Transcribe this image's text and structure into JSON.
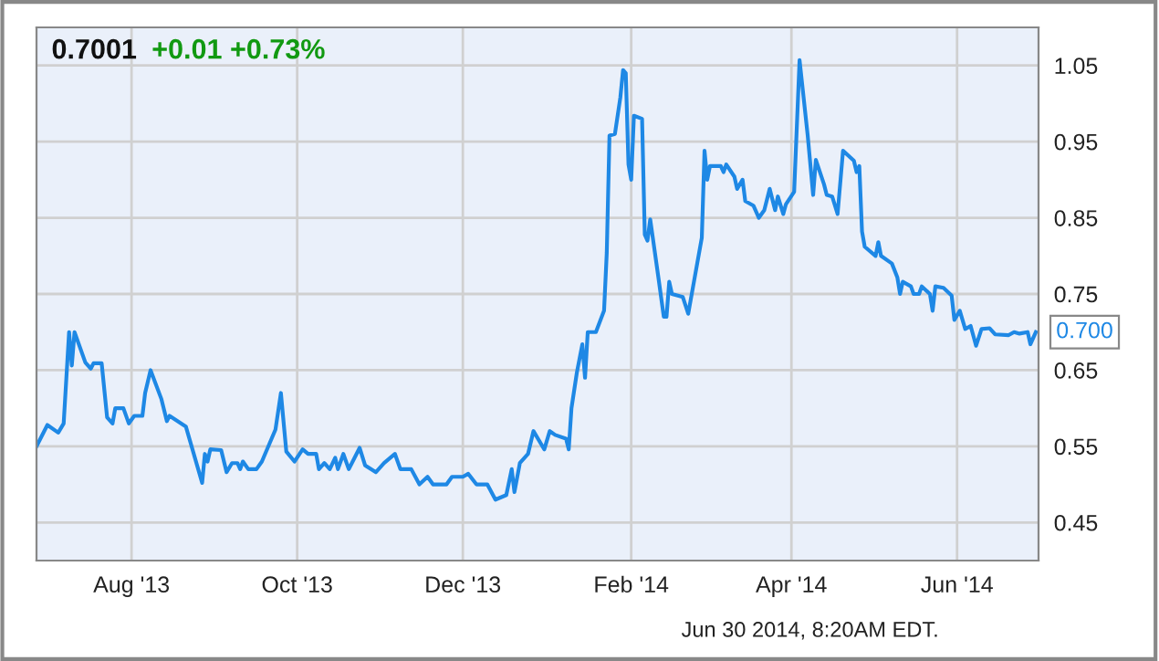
{
  "chart_data": {
    "type": "line",
    "title": "0.7001",
    "subtitle": "+0.01 +0.73%",
    "x": [
      "2013-06-27",
      "2013-07-01",
      "2013-07-05",
      "2013-07-07",
      "2013-07-09",
      "2013-07-10",
      "2013-07-11",
      "2013-07-15",
      "2013-07-17",
      "2013-07-18",
      "2013-07-21",
      "2013-07-23",
      "2013-07-25",
      "2013-07-26",
      "2013-07-29",
      "2013-07-31",
      "2013-08-02",
      "2013-08-05",
      "2013-08-06",
      "2013-08-08",
      "2013-08-12",
      "2013-08-14",
      "2013-08-15",
      "2013-08-21",
      "2013-08-27",
      "2013-08-28",
      "2013-08-29",
      "2013-08-30",
      "2013-09-03",
      "2013-09-05",
      "2013-09-07",
      "2013-09-09",
      "2013-09-10",
      "2013-09-11",
      "2013-09-13",
      "2013-09-16",
      "2013-09-18",
      "2013-09-23",
      "2013-09-25",
      "2013-09-27",
      "2013-09-30",
      "2013-10-03",
      "2013-10-05",
      "2013-10-08",
      "2013-10-09",
      "2013-10-11",
      "2013-10-13",
      "2013-10-15",
      "2013-10-16",
      "2013-10-18",
      "2013-10-20",
      "2013-10-24",
      "2013-10-26",
      "2013-10-30",
      "2013-11-02",
      "2013-11-06",
      "2013-11-08",
      "2013-11-12",
      "2013-11-15",
      "2013-11-18",
      "2013-11-20",
      "2013-11-25",
      "2013-11-27",
      "2013-12-01",
      "2013-12-03",
      "2013-12-06",
      "2013-12-10",
      "2013-12-13",
      "2013-12-17",
      "2013-12-19",
      "2013-12-20",
      "2013-12-22",
      "2013-12-25",
      "2013-12-27",
      "2013-12-31",
      "2014-01-02",
      "2014-01-04",
      "2014-01-08",
      "2014-01-09",
      "2014-01-10",
      "2014-01-12",
      "2014-01-14",
      "2014-01-15",
      "2014-01-16",
      "2014-01-19",
      "2014-01-22",
      "2014-01-23",
      "2014-01-24",
      "2014-01-26",
      "2014-01-28",
      "2014-01-29",
      "2014-01-30",
      "2014-01-31",
      "2014-02-01",
      "2014-02-02",
      "2014-02-05",
      "2014-02-06",
      "2014-02-07",
      "2014-02-08",
      "2014-02-11",
      "2014-02-13",
      "2014-02-14",
      "2014-02-15",
      "2014-02-16",
      "2014-02-20",
      "2014-02-22",
      "2014-02-25",
      "2014-02-27",
      "2014-02-28",
      "2014-03-01",
      "2014-03-02",
      "2014-03-06",
      "2014-03-07",
      "2014-03-08",
      "2014-03-11",
      "2014-03-12",
      "2014-03-14",
      "2014-03-15",
      "2014-03-18",
      "2014-03-20",
      "2014-03-22",
      "2014-03-24",
      "2014-03-26",
      "2014-03-27",
      "2014-03-29",
      "2014-03-30",
      "2014-04-02",
      "2014-04-04",
      "2014-04-07",
      "2014-04-09",
      "2014-04-10",
      "2014-04-13",
      "2014-04-14",
      "2014-04-16",
      "2014-04-18",
      "2014-04-20",
      "2014-04-24",
      "2014-04-25",
      "2014-04-26",
      "2014-04-27",
      "2014-04-28",
      "2014-05-02",
      "2014-05-03",
      "2014-05-04",
      "2014-05-08",
      "2014-05-10",
      "2014-05-11",
      "2014-05-12",
      "2014-05-15",
      "2014-05-16",
      "2014-05-18",
      "2014-05-19",
      "2014-05-22",
      "2014-05-23",
      "2014-05-24",
      "2014-05-27",
      "2014-05-30",
      "2014-05-31",
      "2014-06-02",
      "2014-06-04",
      "2014-06-06",
      "2014-06-08",
      "2014-06-10",
      "2014-06-13",
      "2014-06-15",
      "2014-06-20",
      "2014-06-22",
      "2014-06-24",
      "2014-06-27",
      "2014-06-28",
      "2014-06-30"
    ],
    "series": [
      {
        "color": "#1e88e5",
        "values": [
          0.55,
          0.578,
          0.568,
          0.58,
          0.7,
          0.656,
          0.7,
          0.66,
          0.652,
          0.659,
          0.659,
          0.588,
          0.58,
          0.6,
          0.6,
          0.58,
          0.59,
          0.59,
          0.62,
          0.65,
          0.612,
          0.583,
          0.59,
          0.576,
          0.502,
          0.54,
          0.53,
          0.546,
          0.545,
          0.516,
          0.528,
          0.528,
          0.52,
          0.53,
          0.52,
          0.52,
          0.53,
          0.572,
          0.62,
          0.543,
          0.53,
          0.546,
          0.54,
          0.54,
          0.52,
          0.528,
          0.52,
          0.535,
          0.52,
          0.54,
          0.52,
          0.548,
          0.525,
          0.516,
          0.528,
          0.54,
          0.52,
          0.52,
          0.5,
          0.51,
          0.5,
          0.5,
          0.51,
          0.51,
          0.514,
          0.5,
          0.5,
          0.48,
          0.486,
          0.52,
          0.49,
          0.528,
          0.54,
          0.57,
          0.546,
          0.57,
          0.565,
          0.56,
          0.546,
          0.6,
          0.647,
          0.684,
          0.64,
          0.7,
          0.7,
          0.728,
          0.804,
          0.958,
          0.96,
          1.008,
          1.044,
          1.04,
          0.92,
          0.9,
          0.984,
          0.98,
          0.828,
          0.82,
          0.848,
          0.772,
          0.72,
          0.72,
          0.766,
          0.75,
          0.746,
          0.724,
          0.784,
          0.824,
          0.938,
          0.9,
          0.918,
          0.918,
          0.91,
          0.92,
          0.904,
          0.888,
          0.9,
          0.872,
          0.866,
          0.85,
          0.86,
          0.888,
          0.86,
          0.878,
          0.855,
          0.868,
          0.884,
          1.057,
          0.958,
          0.88,
          0.926,
          0.894,
          0.88,
          0.878,
          0.855,
          0.938,
          0.925,
          0.91,
          0.918,
          0.832,
          0.812,
          0.8,
          0.818,
          0.8,
          0.79,
          0.772,
          0.75,
          0.766,
          0.76,
          0.75,
          0.75,
          0.76,
          0.75,
          0.728,
          0.76,
          0.758,
          0.748,
          0.716,
          0.728,
          0.704,
          0.708,
          0.682,
          0.704,
          0.705,
          0.697,
          0.696,
          0.7,
          0.698,
          0.7,
          0.684,
          0.7
        ]
      }
    ],
    "xlim": [
      "2013-06-27",
      "2014-07-01"
    ],
    "xticks": [
      {
        "value": "2013-08-01",
        "label": "Aug '13"
      },
      {
        "value": "2013-10-01",
        "label": "Oct '13"
      },
      {
        "value": "2013-12-01",
        "label": "Dec '13"
      },
      {
        "value": "2014-02-01",
        "label": "Feb '14"
      },
      {
        "value": "2014-04-01",
        "label": "Apr '14"
      },
      {
        "value": "2014-06-01",
        "label": "Jun '14"
      }
    ],
    "ylim": [
      0.4,
      1.1
    ],
    "yticks": [
      0.45,
      0.55,
      0.65,
      0.75,
      0.85,
      0.95,
      1.05
    ],
    "grid": true,
    "legend": false,
    "marker": "none",
    "line_style": "solid",
    "annotations": [
      {
        "text": "0.700",
        "x": "2014-06-30",
        "y": 0.7
      },
      "Jun 30 2014, 8:20AM EDT."
    ]
  }
}
